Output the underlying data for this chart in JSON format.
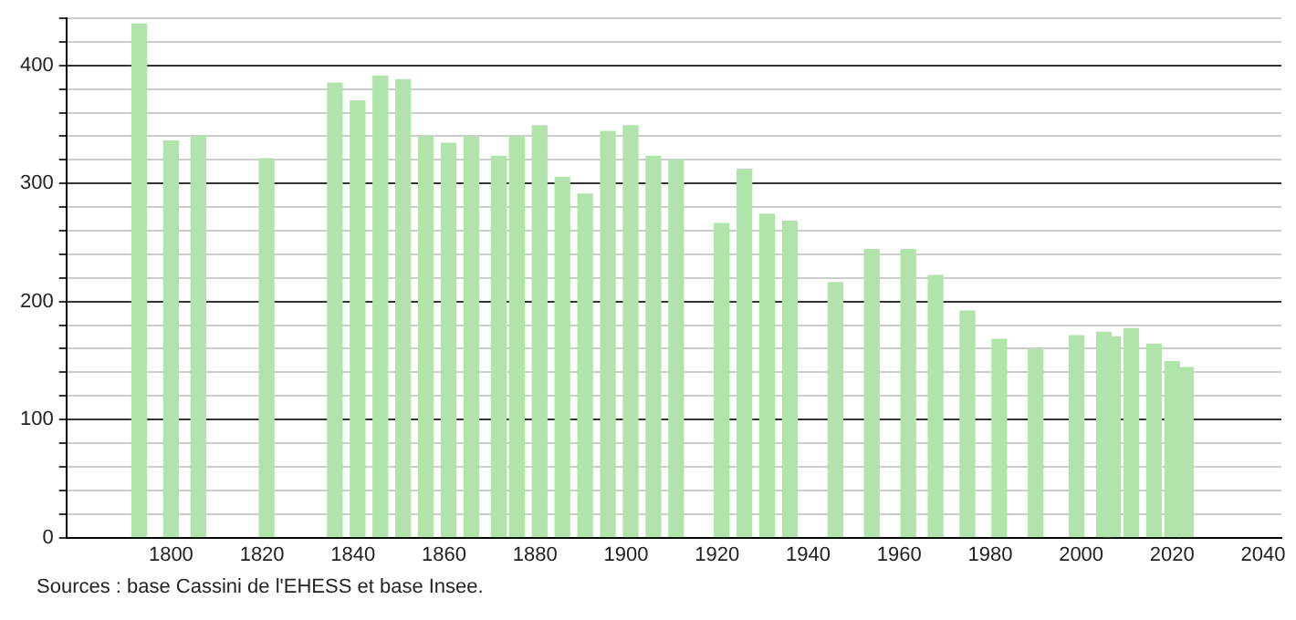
{
  "chart_data": {
    "type": "bar",
    "color": "#b0e4aa",
    "x": [
      1793,
      1800,
      1806,
      1821,
      1836,
      1841,
      1846,
      1851,
      1856,
      1861,
      1866,
      1872,
      1876,
      1881,
      1886,
      1891,
      1896,
      1901,
      1906,
      1911,
      1921,
      1926,
      1931,
      1936,
      1946,
      1954,
      1962,
      1968,
      1975,
      1982,
      1990,
      1999,
      2005,
      2007,
      2011,
      2016,
      2020,
      2023
    ],
    "values": [
      435,
      336,
      340,
      321,
      385,
      370,
      391,
      388,
      340,
      334,
      339,
      323,
      340,
      349,
      305,
      291,
      344,
      349,
      323,
      320,
      266,
      312,
      274,
      268,
      216,
      244,
      244,
      222,
      192,
      168,
      159,
      171,
      174,
      170,
      177,
      164,
      149,
      144
    ],
    "xlim": [
      1777,
      2044
    ],
    "xticks": [
      1800,
      1820,
      1840,
      1860,
      1880,
      1900,
      1920,
      1940,
      1960,
      1980,
      2000,
      2020,
      2040
    ],
    "ylim": [
      0,
      440
    ],
    "yticks": [
      0,
      {
        "value": 20,
        "label": null
      },
      {
        "value": 40,
        "label": null
      },
      {
        "value": 60,
        "label": null
      },
      {
        "value": 80,
        "label": null
      },
      100,
      {
        "value": 120,
        "label": null
      },
      {
        "value": 140,
        "label": null
      },
      {
        "value": 160,
        "label": null
      },
      {
        "value": 180,
        "label": null
      },
      200,
      {
        "value": 220,
        "label": null
      },
      {
        "value": 240,
        "label": null
      },
      {
        "value": 260,
        "label": null
      },
      {
        "value": 280,
        "label": null
      },
      300,
      {
        "value": 320,
        "label": null
      },
      {
        "value": 340,
        "label": null
      },
      {
        "value": 360,
        "label": null
      },
      {
        "value": 380,
        "label": null
      },
      400,
      {
        "value": 420,
        "label": null
      },
      {
        "value": 440,
        "label": null
      }
    ],
    "grid": "y",
    "legend": false,
    "annotations": [
      "Sources : base Cassini de l'EHESS et base Insee."
    ]
  }
}
